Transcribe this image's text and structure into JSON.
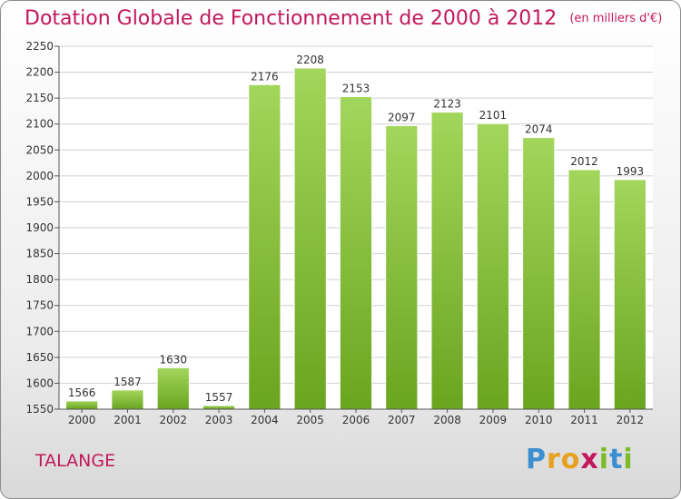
{
  "chart_data": {
    "type": "bar",
    "title": "Dotation Globale de Fonctionnement de 2000 à 2012",
    "unit_label": "(en milliers d'€)",
    "categories": [
      "2000",
      "2001",
      "2002",
      "2003",
      "2004",
      "2005",
      "2006",
      "2007",
      "2008",
      "2009",
      "2010",
      "2011",
      "2012"
    ],
    "values": [
      1566,
      1587,
      1630,
      1557,
      2176,
      2208,
      2153,
      2097,
      2123,
      2101,
      2074,
      2012,
      1993
    ],
    "ylim": [
      1550,
      2250
    ],
    "yticks": [
      1550,
      1600,
      1650,
      1700,
      1750,
      1800,
      1850,
      1900,
      1950,
      2000,
      2050,
      2100,
      2150,
      2200,
      2250
    ],
    "grid": true,
    "bar_color": "#7cbb2a",
    "bar_color_light": "#a3d65c"
  },
  "commune": "TALANGE",
  "logo": {
    "text": "Proxiti",
    "letters": [
      {
        "ch": "P",
        "color": "#3b8fd1"
      },
      {
        "ch": "r",
        "color": "#e8a020"
      },
      {
        "ch": "o",
        "color": "#e8a020"
      },
      {
        "ch": "x",
        "color": "#c2185b"
      },
      {
        "ch": "i",
        "color": "#7cbb2a"
      },
      {
        "ch": "t",
        "color": "#3b8fd1"
      },
      {
        "ch": "i",
        "color": "#7cbb2a"
      }
    ]
  }
}
